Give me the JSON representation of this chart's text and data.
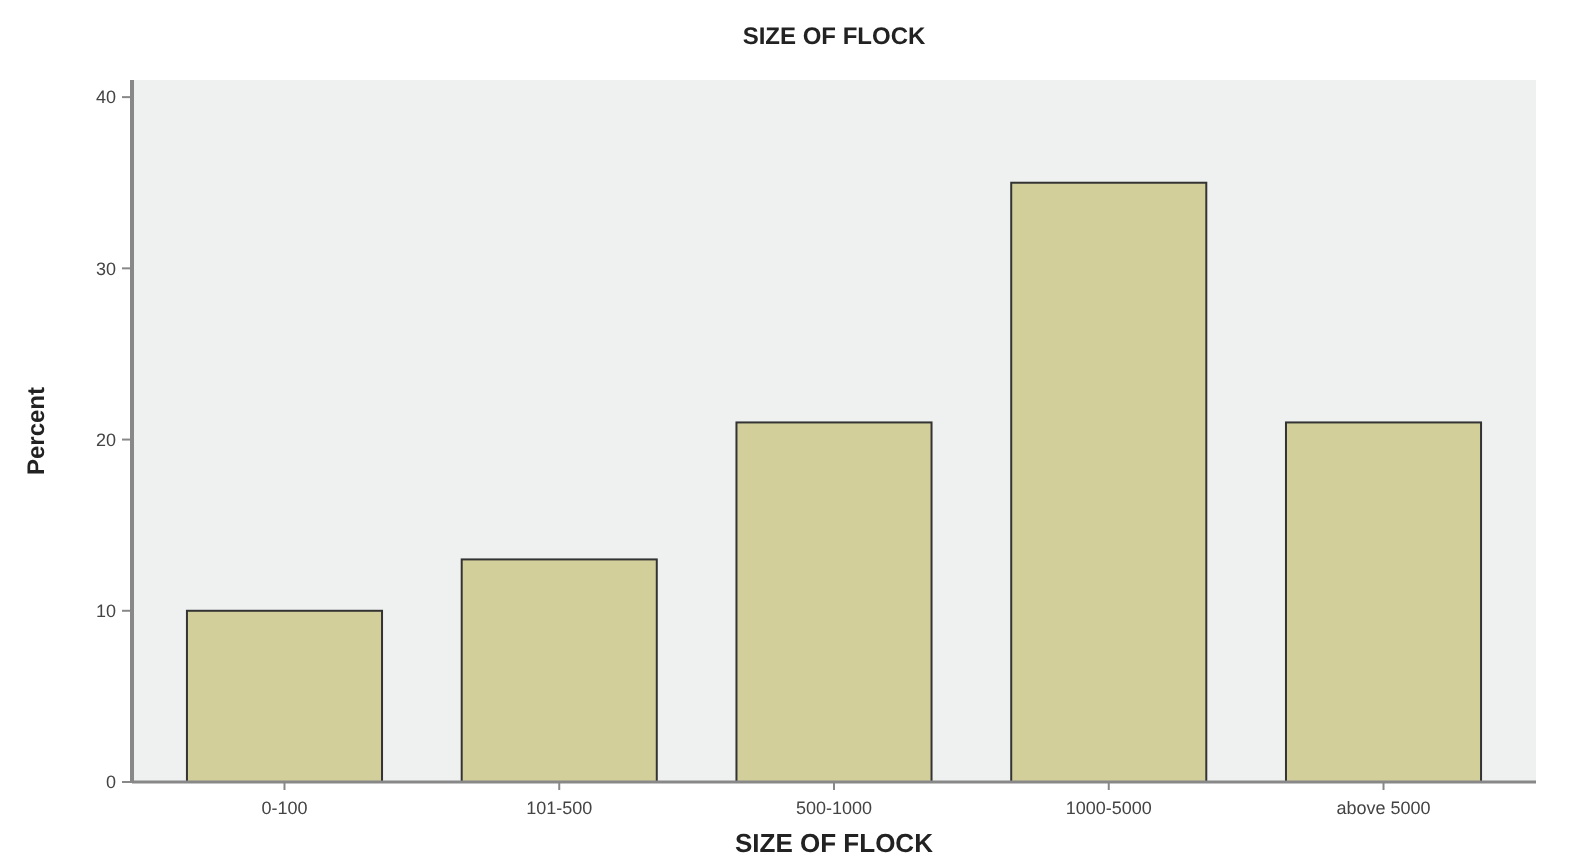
{
  "chart_data": {
    "type": "bar",
    "title": "SIZE OF FLOCK",
    "xlabel": "SIZE OF FLOCK",
    "ylabel": "Percent",
    "categories": [
      "0-100",
      "101-500",
      "500-1000",
      "1000-5000",
      "above 5000"
    ],
    "values": [
      10,
      13,
      21,
      35,
      21
    ],
    "color": "#d3cf9b",
    "ylim": [
      0,
      41
    ],
    "yticks": [
      0,
      10,
      20,
      30,
      40
    ]
  }
}
